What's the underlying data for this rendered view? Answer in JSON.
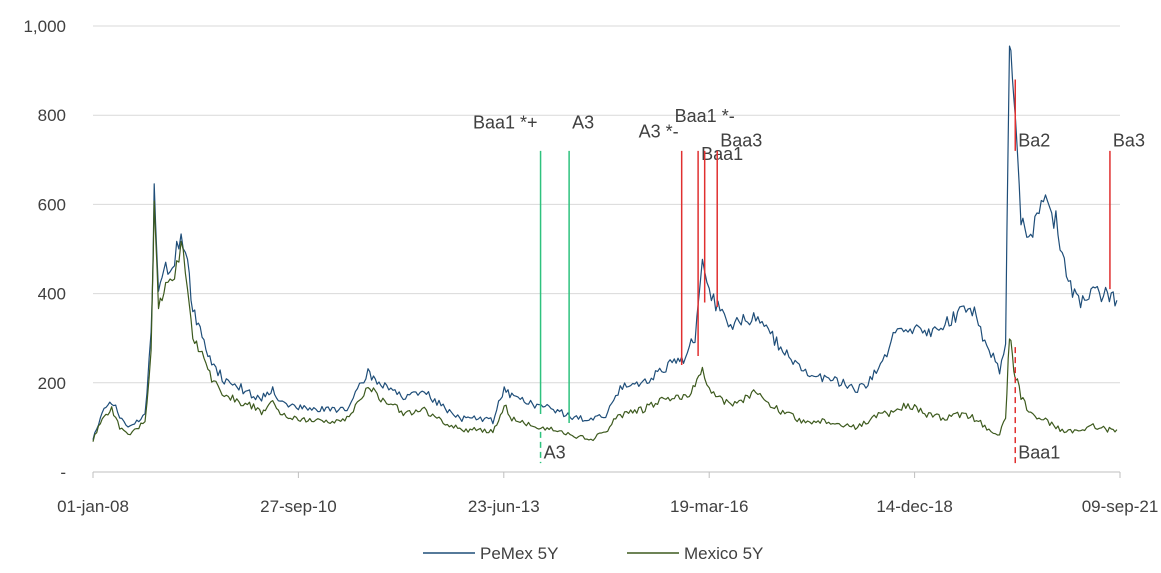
{
  "chart_data": {
    "type": "line",
    "title": "",
    "xlabel": "",
    "ylabel": "",
    "x_range": [
      "2008-01-01",
      "2021-09-09"
    ],
    "ylim": [
      0,
      1000
    ],
    "y_ticks": [
      0,
      200,
      400,
      600,
      800,
      1000
    ],
    "y_tick_labels": [
      "-",
      "200",
      "400",
      "600",
      "800",
      "1,000"
    ],
    "x_ticks": [
      "2008-01-01",
      "2010-09-27",
      "2013-06-23",
      "2016-03-19",
      "2018-12-14",
      "2021-09-09"
    ],
    "x_tick_labels": [
      "01-jan-08",
      "27-sep-10",
      "23-jun-13",
      "19-mar-16",
      "14-dec-18",
      "09-sep-21"
    ],
    "grid": "horizontal",
    "legend_position": "bottom",
    "colors": {
      "pemex": "#1f4e79",
      "mexico": "#3d5a1e",
      "upgrade": "#2ec27e",
      "downgrade": "#e03030",
      "grid": "#d9d9d9",
      "axis": "#bfbfbf"
    },
    "series": [
      {
        "name": "PeMex 5Y",
        "points": [
          [
            "2008-01-01",
            75
          ],
          [
            "2008-02-15",
            130
          ],
          [
            "2008-04-01",
            160
          ],
          [
            "2008-05-10",
            125
          ],
          [
            "2008-06-20",
            100
          ],
          [
            "2008-08-01",
            110
          ],
          [
            "2008-09-10",
            130
          ],
          [
            "2008-10-10",
            300
          ],
          [
            "2008-10-25",
            630
          ],
          [
            "2008-11-15",
            420
          ],
          [
            "2008-12-20",
            450
          ],
          [
            "2009-02-01",
            470
          ],
          [
            "2009-03-05",
            545
          ],
          [
            "2009-04-05",
            470
          ],
          [
            "2009-05-01",
            360
          ],
          [
            "2009-06-15",
            300
          ],
          [
            "2009-08-01",
            250
          ],
          [
            "2009-10-01",
            205
          ],
          [
            "2009-12-01",
            195
          ],
          [
            "2010-02-01",
            175
          ],
          [
            "2010-04-01",
            165
          ],
          [
            "2010-05-25",
            190
          ],
          [
            "2010-07-01",
            155
          ],
          [
            "2010-09-27",
            145
          ],
          [
            "2010-12-01",
            140
          ],
          [
            "2011-03-01",
            140
          ],
          [
            "2011-06-01",
            145
          ],
          [
            "2011-09-01",
            225
          ],
          [
            "2011-10-15",
            200
          ],
          [
            "2011-12-01",
            195
          ],
          [
            "2012-03-01",
            165
          ],
          [
            "2012-06-01",
            180
          ],
          [
            "2012-09-01",
            145
          ],
          [
            "2012-12-01",
            120
          ],
          [
            "2013-03-01",
            120
          ],
          [
            "2013-05-01",
            115
          ],
          [
            "2013-06-25",
            190
          ],
          [
            "2013-08-01",
            170
          ],
          [
            "2013-10-01",
            160
          ],
          [
            "2013-12-01",
            150
          ],
          [
            "2014-03-01",
            140
          ],
          [
            "2014-06-01",
            120
          ],
          [
            "2014-09-01",
            120
          ],
          [
            "2014-11-01",
            125
          ],
          [
            "2014-12-20",
            170
          ],
          [
            "2015-02-01",
            200
          ],
          [
            "2015-05-01",
            200
          ],
          [
            "2015-08-01",
            230
          ],
          [
            "2015-10-01",
            250
          ],
          [
            "2015-11-15",
            255
          ],
          [
            "2016-01-10",
            300
          ],
          [
            "2016-02-15",
            460
          ],
          [
            "2016-03-19",
            400
          ],
          [
            "2016-05-01",
            370
          ],
          [
            "2016-07-01",
            330
          ],
          [
            "2016-09-01",
            340
          ],
          [
            "2016-11-01",
            350
          ],
          [
            "2017-01-01",
            310
          ],
          [
            "2017-04-01",
            270
          ],
          [
            "2017-07-01",
            220
          ],
          [
            "2017-10-01",
            210
          ],
          [
            "2018-01-01",
            200
          ],
          [
            "2018-03-01",
            180
          ],
          [
            "2018-05-01",
            200
          ],
          [
            "2018-07-01",
            235
          ],
          [
            "2018-09-01",
            300
          ],
          [
            "2018-11-01",
            330
          ],
          [
            "2018-12-14",
            320
          ],
          [
            "2019-02-01",
            310
          ],
          [
            "2019-05-01",
            330
          ],
          [
            "2019-08-01",
            360
          ],
          [
            "2019-10-01",
            365
          ],
          [
            "2019-12-01",
            280
          ],
          [
            "2020-02-01",
            230
          ],
          [
            "2020-03-01",
            300
          ],
          [
            "2020-03-20",
            1000
          ],
          [
            "2020-04-10",
            820
          ],
          [
            "2020-05-15",
            560
          ],
          [
            "2020-07-01",
            540
          ],
          [
            "2020-09-01",
            600
          ],
          [
            "2020-11-01",
            560
          ],
          [
            "2021-01-01",
            420
          ],
          [
            "2021-03-01",
            380
          ],
          [
            "2021-05-01",
            400
          ],
          [
            "2021-07-01",
            395
          ],
          [
            "2021-08-25",
            385
          ]
        ]
      },
      {
        "name": "Mexico 5Y",
        "points": [
          [
            "2008-01-01",
            70
          ],
          [
            "2008-02-15",
            120
          ],
          [
            "2008-04-01",
            140
          ],
          [
            "2008-05-10",
            100
          ],
          [
            "2008-06-20",
            85
          ],
          [
            "2008-08-01",
            95
          ],
          [
            "2008-09-10",
            115
          ],
          [
            "2008-10-10",
            260
          ],
          [
            "2008-10-25",
            620
          ],
          [
            "2008-11-15",
            380
          ],
          [
            "2008-12-20",
            410
          ],
          [
            "2009-02-01",
            430
          ],
          [
            "2009-03-05",
            520
          ],
          [
            "2009-04-05",
            420
          ],
          [
            "2009-05-01",
            310
          ],
          [
            "2009-06-15",
            260
          ],
          [
            "2009-08-01",
            210
          ],
          [
            "2009-10-01",
            175
          ],
          [
            "2009-12-01",
            160
          ],
          [
            "2010-02-01",
            150
          ],
          [
            "2010-04-01",
            135
          ],
          [
            "2010-05-25",
            160
          ],
          [
            "2010-07-01",
            130
          ],
          [
            "2010-09-27",
            120
          ],
          [
            "2010-12-01",
            115
          ],
          [
            "2011-03-01",
            115
          ],
          [
            "2011-06-01",
            120
          ],
          [
            "2011-09-01",
            195
          ],
          [
            "2011-10-15",
            170
          ],
          [
            "2011-12-01",
            160
          ],
          [
            "2012-03-01",
            130
          ],
          [
            "2012-06-01",
            140
          ],
          [
            "2012-09-01",
            110
          ],
          [
            "2012-12-01",
            95
          ],
          [
            "2013-03-01",
            95
          ],
          [
            "2013-05-01",
            90
          ],
          [
            "2013-06-25",
            150
          ],
          [
            "2013-08-01",
            120
          ],
          [
            "2013-10-01",
            110
          ],
          [
            "2013-12-01",
            100
          ],
          [
            "2014-03-01",
            95
          ],
          [
            "2014-06-01",
            80
          ],
          [
            "2014-09-01",
            75
          ],
          [
            "2014-11-01",
            90
          ],
          [
            "2014-12-20",
            120
          ],
          [
            "2015-02-01",
            130
          ],
          [
            "2015-05-01",
            140
          ],
          [
            "2015-08-01",
            160
          ],
          [
            "2015-10-01",
            170
          ],
          [
            "2015-11-15",
            165
          ],
          [
            "2016-01-10",
            190
          ],
          [
            "2016-02-15",
            230
          ],
          [
            "2016-03-19",
            185
          ],
          [
            "2016-05-01",
            165
          ],
          [
            "2016-07-01",
            150
          ],
          [
            "2016-09-01",
            160
          ],
          [
            "2016-11-01",
            180
          ],
          [
            "2017-01-01",
            150
          ],
          [
            "2017-04-01",
            130
          ],
          [
            "2017-07-01",
            110
          ],
          [
            "2017-10-01",
            115
          ],
          [
            "2018-01-01",
            105
          ],
          [
            "2018-03-01",
            100
          ],
          [
            "2018-05-01",
            115
          ],
          [
            "2018-07-01",
            135
          ],
          [
            "2018-09-01",
            130
          ],
          [
            "2018-11-01",
            150
          ],
          [
            "2018-12-14",
            145
          ],
          [
            "2019-02-01",
            130
          ],
          [
            "2019-05-01",
            120
          ],
          [
            "2019-08-01",
            130
          ],
          [
            "2019-10-01",
            120
          ],
          [
            "2019-12-01",
            100
          ],
          [
            "2020-02-01",
            85
          ],
          [
            "2020-03-01",
            120
          ],
          [
            "2020-03-20",
            310
          ],
          [
            "2020-04-10",
            230
          ],
          [
            "2020-05-15",
            170
          ],
          [
            "2020-07-01",
            130
          ],
          [
            "2020-09-01",
            120
          ],
          [
            "2020-11-01",
            100
          ],
          [
            "2021-01-01",
            90
          ],
          [
            "2021-03-01",
            95
          ],
          [
            "2021-05-01",
            105
          ],
          [
            "2021-07-01",
            95
          ],
          [
            "2021-08-25",
            95
          ]
        ]
      }
    ],
    "annotations": [
      {
        "label": "Baa1 *+",
        "date": "2013-12-19",
        "type": "upgrade",
        "style": "solid",
        "top": 720,
        "bottom": 130,
        "label_y": 770,
        "anchor": "end"
      },
      {
        "label": "A3",
        "date": "2014-05-07",
        "type": "upgrade",
        "style": "solid",
        "top": 720,
        "bottom": 110,
        "label_y": 770,
        "anchor": "start"
      },
      {
        "label": "A3",
        "date": "2013-12-19",
        "type": "upgrade",
        "style": "dashed",
        "top": 90,
        "bottom": 20,
        "label_y": 30,
        "anchor": "start"
      },
      {
        "label": "A3 *-",
        "date": "2015-11-06",
        "type": "downgrade",
        "style": "solid",
        "top": 720,
        "bottom": 240,
        "label_y": 750,
        "anchor": "end"
      },
      {
        "label": "Baa1",
        "date": "2016-01-25",
        "type": "downgrade",
        "style": "solid",
        "top": 720,
        "bottom": 260,
        "label_y": 700,
        "anchor": "start"
      },
      {
        "label": "Baa1 *-",
        "date": "2016-02-26",
        "type": "downgrade",
        "style": "solid",
        "top": 720,
        "bottom": 380,
        "label_y": 785,
        "anchor": "middle"
      },
      {
        "label": "Baa3",
        "date": "2016-04-27",
        "type": "downgrade",
        "style": "solid",
        "top": 720,
        "bottom": 370,
        "label_y": 730,
        "anchor": "start"
      },
      {
        "label": "Ba2",
        "date": "2020-04-17",
        "type": "downgrade",
        "style": "solid",
        "top": 880,
        "bottom": 720,
        "label_y": 730,
        "anchor": "start"
      },
      {
        "label": "Baa1",
        "date": "2020-04-17",
        "type": "downgrade",
        "style": "dashed",
        "top": 280,
        "bottom": 20,
        "label_y": 30,
        "anchor": "start"
      },
      {
        "label": "Ba3",
        "date": "2021-07-22",
        "type": "downgrade",
        "style": "solid",
        "top": 720,
        "bottom": 410,
        "label_y": 730,
        "anchor": "start"
      }
    ]
  }
}
